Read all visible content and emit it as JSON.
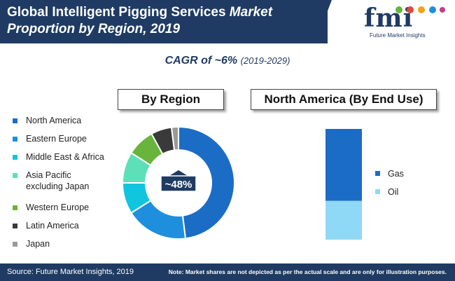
{
  "header": {
    "title_part1": "Global Intelligent Pigging Services ",
    "title_part2": "Market",
    "title_line2": "Proportion by Region, 2019"
  },
  "logo": {
    "text": "fmi",
    "subtitle": "Future Market Insights"
  },
  "cagr": {
    "label": "CAGR of ~6%",
    "years": "(2019-2029)"
  },
  "chart_data": [
    {
      "type": "pie",
      "title": "By Region",
      "categories": [
        "North America",
        "Eastern Europe",
        "Middle East & Africa",
        "Asia Pacific excluding Japan",
        "Western Europe",
        "Latin America",
        "Japan"
      ],
      "values": [
        48,
        18,
        9,
        9,
        8,
        6,
        2
      ],
      "colors": [
        "#1b6cc4",
        "#1e8fdc",
        "#11c5de",
        "#5de0b8",
        "#68b43c",
        "#3a3a3a",
        "#9a9a9a"
      ],
      "center_label": "~48%",
      "legend_position": "left"
    },
    {
      "type": "bar",
      "stacked": true,
      "title": "North America (By End Use)",
      "categories": [
        "Gas",
        "Oil"
      ],
      "values": [
        65,
        35
      ],
      "colors": [
        "#1b6cc4",
        "#8fd8f6"
      ],
      "legend_position": "right"
    }
  ],
  "legend_lines": {
    "asia_line1": "Asia Pacific",
    "asia_line2": "excluding Japan"
  },
  "footer": {
    "source": "Source: Future Market Insights, 2019",
    "note": "Note: Market shares are not depicted as per the actual scale and are only for illustration purposes."
  }
}
